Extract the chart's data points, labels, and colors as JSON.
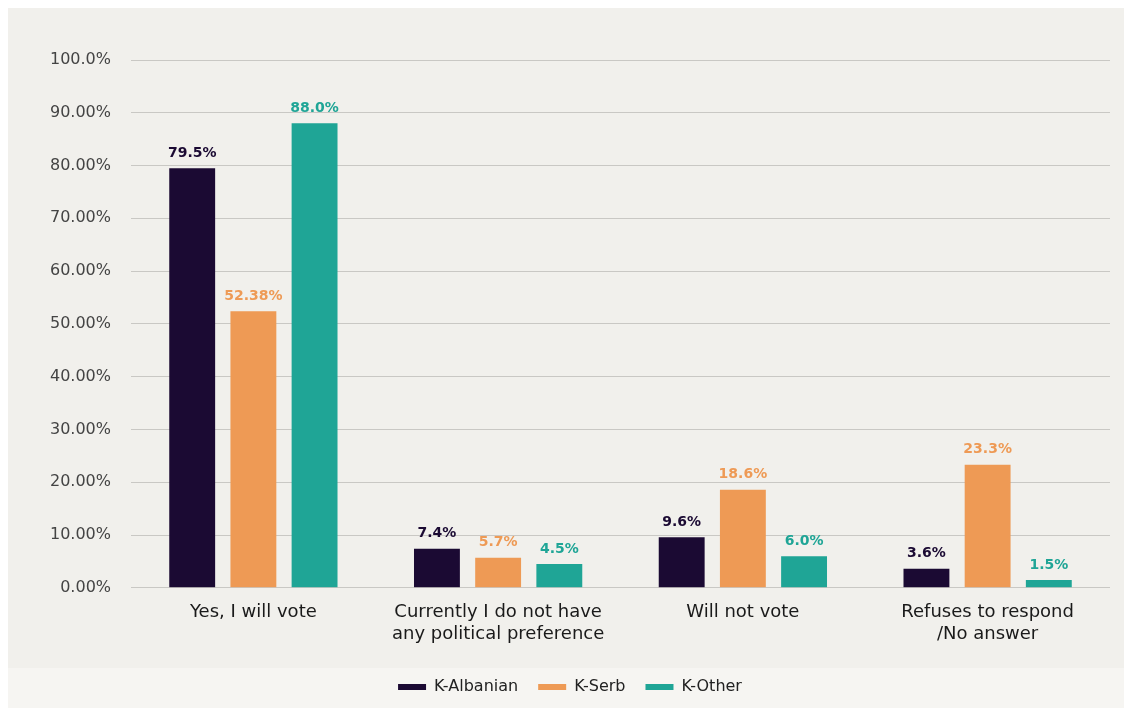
{
  "chart_data": {
    "type": "bar",
    "categories": [
      "Yes, I will vote",
      "Currently I do not have any political preference",
      "Will not vote",
      "Refuses to respond /No answer"
    ],
    "series": [
      {
        "name": "K-Albanian",
        "color": "#1b0a33",
        "values": [
          79.5,
          7.4,
          9.6,
          3.6
        ],
        "value_labels": [
          "79.5%",
          "7.4%",
          "9.6%",
          "3.6%"
        ]
      },
      {
        "name": "K-Serb",
        "color": "#ee9a55",
        "values": [
          52.38,
          5.7,
          18.6,
          23.3
        ],
        "value_labels": [
          "52.38%",
          "5.7%",
          "18.6%",
          "23.3%"
        ]
      },
      {
        "name": "K-Other",
        "color": "#1fa596",
        "values": [
          88.0,
          4.5,
          6.0,
          1.5
        ],
        "value_labels": [
          "88.0%",
          "4.5%",
          "6.0%",
          "1.5%"
        ]
      }
    ],
    "ylim": [
      0,
      100
    ],
    "yticks": [
      {
        "value": 0,
        "label": "0.00%"
      },
      {
        "value": 10,
        "label": "10.00%"
      },
      {
        "value": 20,
        "label": "20.00%"
      },
      {
        "value": 30,
        "label": "30.00%"
      },
      {
        "value": 40,
        "label": "40.00%"
      },
      {
        "value": 50,
        "label": "50.00%"
      },
      {
        "value": 60,
        "label": "60.00%"
      },
      {
        "value": 70,
        "label": "70.00%"
      },
      {
        "value": 80,
        "label": "80.00%"
      },
      {
        "value": 90,
        "label": "90.00%"
      },
      {
        "value": 100,
        "label": "100.0%"
      }
    ],
    "grid": "y",
    "legend": "bottom"
  }
}
